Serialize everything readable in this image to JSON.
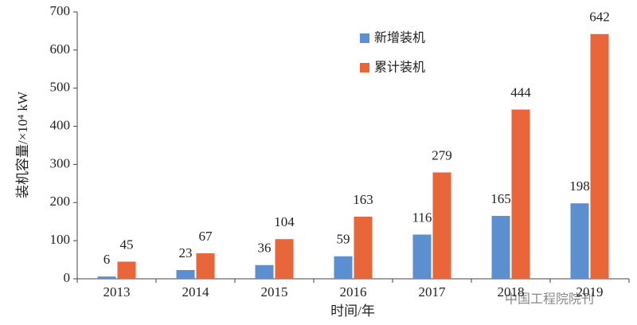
{
  "chart_data": {
    "type": "bar",
    "y_label": "装机容量/×10⁴ kW",
    "x_label": "时间/年",
    "categories": [
      "2013",
      "2014",
      "2015",
      "2016",
      "2017",
      "2018",
      "2019"
    ],
    "series": [
      {
        "name": "新增装机",
        "color": "#5b8fd0",
        "values": [
          6,
          23,
          36,
          59,
          116,
          165,
          198
        ]
      },
      {
        "name": "累计装机",
        "color": "#e8663a",
        "values": [
          45,
          67,
          104,
          163,
          279,
          444,
          642
        ]
      }
    ],
    "ylim": [
      0,
      700
    ],
    "yticks": [
      0,
      100,
      200,
      300,
      400,
      500,
      600,
      700
    ],
    "legend": "top-center",
    "watermark": "中国工程院院刊"
  }
}
